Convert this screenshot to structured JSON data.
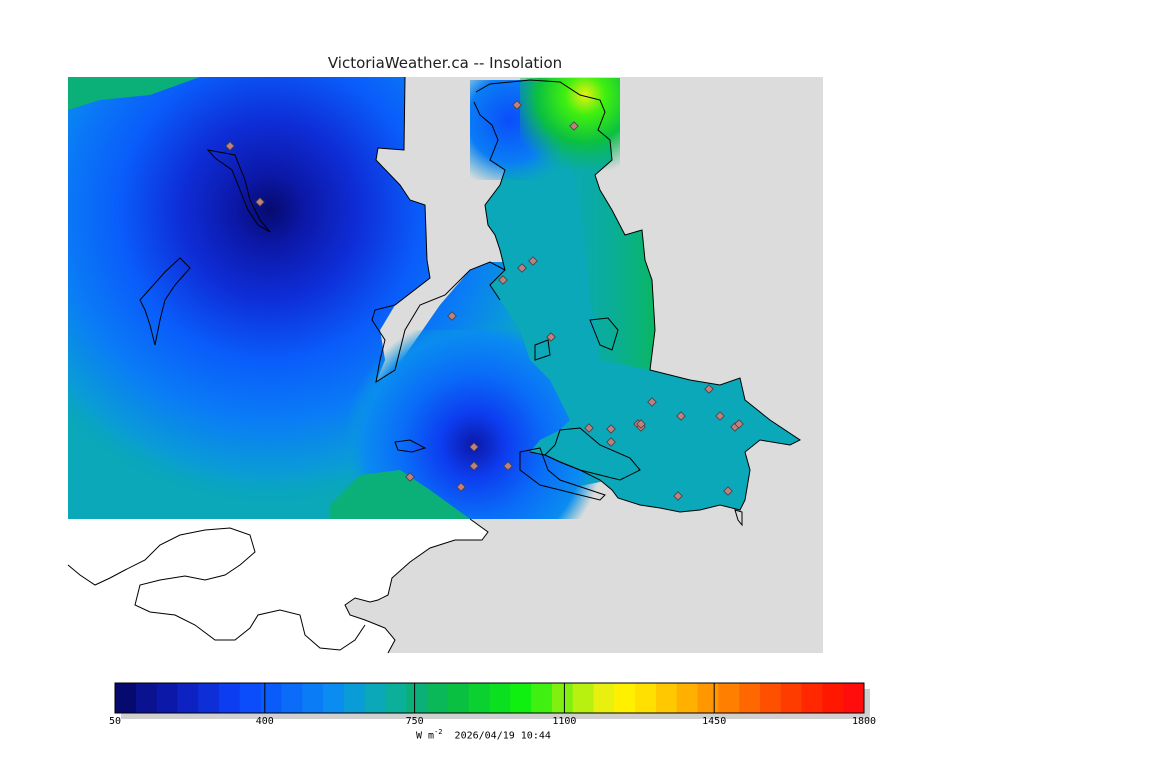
{
  "title": "VictoriaWeather.ca  --  Insolation",
  "colorbar": {
    "min": 50,
    "max": 1800,
    "tick_labels": [
      "50",
      "400",
      "750",
      "1100",
      "1450",
      "1800"
    ],
    "tick_values": [
      50,
      400,
      750,
      1100,
      1450,
      1800
    ],
    "colors": [
      "#060a6e",
      "#0a128f",
      "#0c18a8",
      "#0d22c0",
      "#0e2ed8",
      "#0d3df0",
      "#0b4dfa",
      "#0a5cfa",
      "#0a6cf8",
      "#0a7cf6",
      "#0a8cf0",
      "#0a9cd6",
      "#0aa8b8",
      "#0ab09a",
      "#0ab078",
      "#0ab85a",
      "#0ac040",
      "#0ad030",
      "#0ae020",
      "#10f010",
      "#40f010",
      "#80f010",
      "#b8f010",
      "#e8f010",
      "#fff000",
      "#ffe000",
      "#ffc800",
      "#ffb000",
      "#ff9800",
      "#ff8000",
      "#ff6800",
      "#ff5000",
      "#ff3c00",
      "#ff2800",
      "#ff1800",
      "#ff0c0c"
    ],
    "units_main": "W m",
    "units_exp": "-2",
    "timestamp": "2026/04/19 10:44"
  },
  "stations_count": 28
}
